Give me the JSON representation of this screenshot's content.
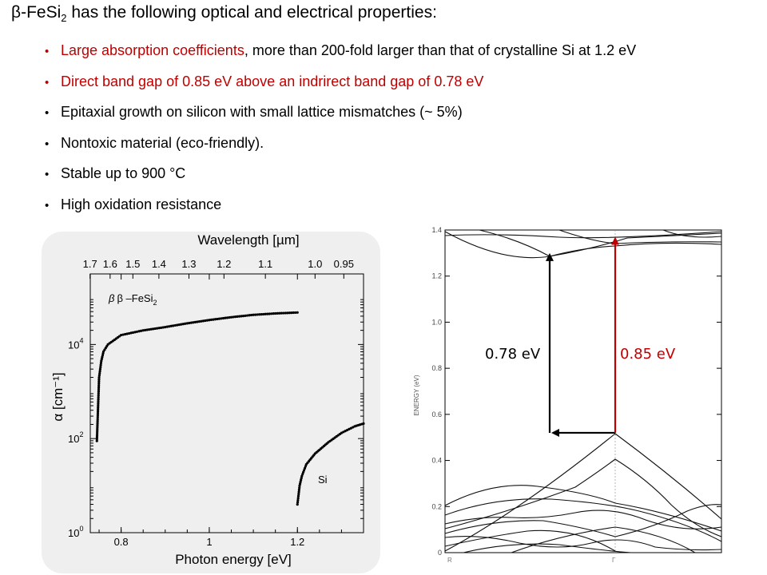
{
  "title": {
    "prefix": "β-FeSi",
    "sub": "2",
    "suffix": " has the following optical and electrical properties:"
  },
  "bullets": [
    {
      "highlight": "Large absorption coefficients",
      "rest": ", more than 200-fold larger than that of crystalline Si at 1.2 eV"
    },
    {
      "highlight": "Direct band gap of 0.85 eV above an indrirect band gap of 0.78 eV",
      "rest": ""
    },
    {
      "highlight": "",
      "rest": "Epitaxial growth on silicon with small lattice mismatches (~ 5%)"
    },
    {
      "highlight": "",
      "rest": "Nontoxic material (eco-friendly)."
    },
    {
      "highlight": "",
      "rest": "Stable up to 900 °C"
    },
    {
      "highlight": "",
      "rest": "High oxidation resistance"
    }
  ],
  "colors": {
    "highlight": "#c00000",
    "panel": "#efefef",
    "arrow_red": "#c00000"
  },
  "chart_data": [
    {
      "type": "scatter",
      "xlabel": "Photon energy [eV]",
      "x2label": "Wavelength [µm]",
      "ylabel": "α [cm⁻¹]",
      "xlim": [
        0.73,
        1.35
      ],
      "ylim_log10": [
        0,
        5.5
      ],
      "yscale": "log",
      "x_ticks": [
        "0.8",
        "1",
        "1.2"
      ],
      "x_tick_values": [
        0.8,
        1.0,
        1.2
      ],
      "top_ticks": [
        "1.7",
        "1.6",
        "1.5",
        "1.4",
        "1.3",
        "1.2",
        "1.1",
        "1.0",
        "0.95"
      ],
      "top_tick_values_um": [
        1.7,
        1.6,
        1.5,
        1.4,
        1.3,
        1.2,
        1.1,
        1.0,
        0.95
      ],
      "y_ticks": [
        {
          "base": "10",
          "exp": "0"
        },
        {
          "base": "10",
          "exp": "2"
        },
        {
          "base": "10",
          "exp": "4"
        }
      ],
      "y_tick_values_log10": [
        0,
        2,
        4
      ],
      "series": [
        {
          "name": "β –FeSi₂",
          "label_base": "β –FeSi",
          "label_sub": "2",
          "x": [
            0.745,
            0.75,
            0.755,
            0.76,
            0.77,
            0.8,
            0.85,
            0.9,
            0.95,
            1.0,
            1.05,
            1.1,
            1.15,
            1.2
          ],
          "log10_alpha": [
            1.95,
            3.3,
            3.65,
            3.85,
            4.0,
            4.2,
            4.3,
            4.37,
            4.45,
            4.52,
            4.58,
            4.63,
            4.66,
            4.68
          ]
        },
        {
          "name": "Si",
          "x": [
            1.2,
            1.205,
            1.21,
            1.22,
            1.24,
            1.27,
            1.3,
            1.33,
            1.35
          ],
          "log10_alpha": [
            0.6,
            1.0,
            1.2,
            1.45,
            1.68,
            1.92,
            2.12,
            2.26,
            2.32
          ]
        }
      ]
    },
    {
      "type": "line",
      "ylabel": "ENERGY (eV)",
      "ylim": [
        0,
        1.4
      ],
      "y_ticks": [
        "0",
        "0.2",
        "0.4",
        "0.6",
        "0.8",
        "1.0",
        "1.2",
        "1.4"
      ],
      "y_tick_values": [
        0,
        0.2,
        0.4,
        0.6,
        0.8,
        1.0,
        1.2,
        1.4
      ],
      "x_ticks": [
        "R",
        "Γ"
      ],
      "annotations": [
        {
          "text": "0.78 eV",
          "color": "#000000",
          "from_eV": 0.52,
          "to_eV": 1.3
        },
        {
          "text": "0.85 eV",
          "color": "#c00000",
          "from_eV": 0.52,
          "to_eV": 1.37
        }
      ]
    }
  ]
}
